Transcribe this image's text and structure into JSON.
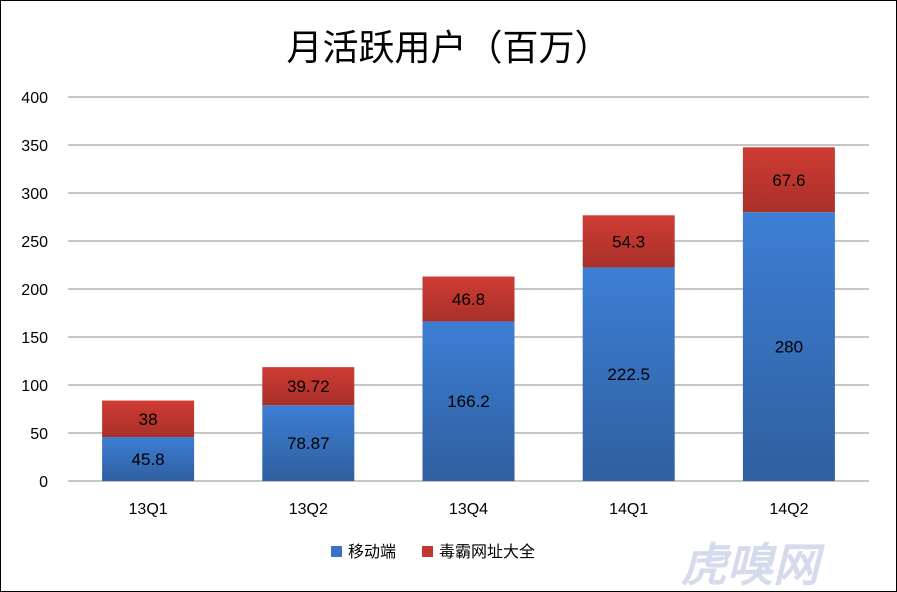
{
  "chart_data": {
    "type": "bar",
    "stacked": true,
    "title": "月活跃用户（百万）",
    "categories": [
      "13Q1",
      "13Q2",
      "13Q4",
      "14Q1",
      "14Q2"
    ],
    "series": [
      {
        "name": "移动端",
        "values": [
          45.8,
          78.87,
          166.2,
          222.5,
          280
        ],
        "labels": [
          "45.8",
          "78.87",
          "166.2",
          "222.5",
          "280"
        ],
        "color": "#3a72c4"
      },
      {
        "name": "毒霸网址大全",
        "values": [
          38,
          39.72,
          46.8,
          54.3,
          67.6
        ],
        "labels": [
          "38",
          "39.72",
          "46.8",
          "54.3",
          "67.6"
        ],
        "color": "#c0392f"
      }
    ],
    "ylim": [
      0,
      400
    ],
    "yticks": [
      "0",
      "50",
      "100",
      "150",
      "200",
      "250",
      "300",
      "350",
      "400"
    ],
    "ytick_values": [
      0,
      50,
      100,
      150,
      200,
      250,
      300,
      350,
      400
    ],
    "grid": true,
    "legend_position": "bottom",
    "xlabel": "",
    "ylabel": ""
  },
  "watermark": {
    "text": "虎嗅网"
  }
}
